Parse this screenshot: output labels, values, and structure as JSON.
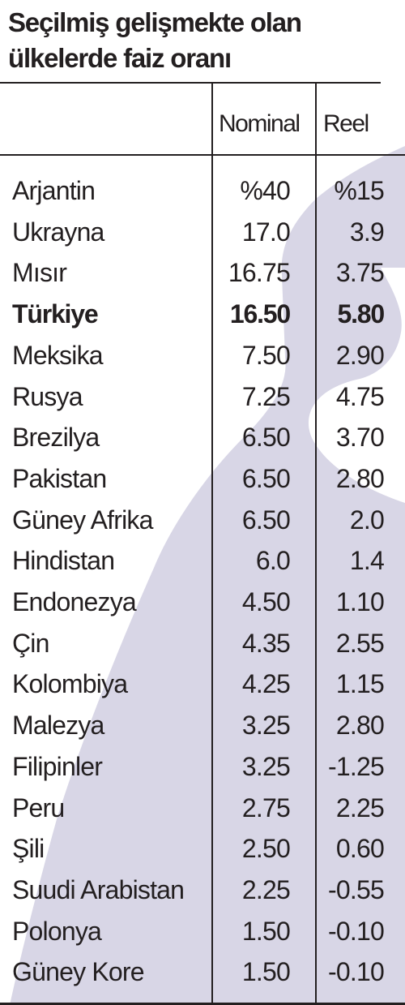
{
  "title": {
    "line1": "Seçilmiş gelişmekte olan",
    "line2": "ülkelerde faiz oranı"
  },
  "colors": {
    "text": "#231f20",
    "background_shape": "#d8d6e6"
  },
  "chart_data": {
    "type": "table",
    "title": "Seçilmiş gelişmekte olan ülkelerde faiz oranı",
    "columns": [
      "Nominal",
      "Reel"
    ],
    "rows": [
      {
        "country": "Arjantin",
        "nominal": "%40",
        "reel": "%15",
        "highlight": false
      },
      {
        "country": "Ukrayna",
        "nominal": "17.0",
        "reel": "3.9",
        "highlight": false
      },
      {
        "country": "Mısır",
        "nominal": "16.75",
        "reel": "3.75",
        "highlight": false
      },
      {
        "country": "Türkiye",
        "nominal": "16.50",
        "reel": "5.80",
        "highlight": true
      },
      {
        "country": "Meksika",
        "nominal": "7.50",
        "reel": "2.90",
        "highlight": false
      },
      {
        "country": "Rusya",
        "nominal": "7.25",
        "reel": "4.75",
        "highlight": false
      },
      {
        "country": "Brezilya",
        "nominal": "6.50",
        "reel": "3.70",
        "highlight": false
      },
      {
        "country": "Pakistan",
        "nominal": "6.50",
        "reel": "2.80",
        "highlight": false
      },
      {
        "country": "Güney Afrika",
        "nominal": "6.50",
        "reel": "2.0",
        "highlight": false
      },
      {
        "country": "Hindistan",
        "nominal": "6.0",
        "reel": "1.4",
        "highlight": false
      },
      {
        "country": "Endonezya",
        "nominal": "4.50",
        "reel": "1.10",
        "highlight": false
      },
      {
        "country": "Çin",
        "nominal": "4.35",
        "reel": "2.55",
        "highlight": false
      },
      {
        "country": "Kolombiya",
        "nominal": "4.25",
        "reel": "1.15",
        "highlight": false
      },
      {
        "country": "Malezya",
        "nominal": "3.25",
        "reel": "2.80",
        "highlight": false
      },
      {
        "country": "Filipinler",
        "nominal": "3.25",
        "reel": "-1.25",
        "highlight": false
      },
      {
        "country": "Peru",
        "nominal": "2.75",
        "reel": "2.25",
        "highlight": false
      },
      {
        "country": "Şili",
        "nominal": "2.50",
        "reel": "0.60",
        "highlight": false
      },
      {
        "country": "Suudi Arabistan",
        "nominal": "2.25",
        "reel": "-0.55",
        "highlight": false
      },
      {
        "country": "Polonya",
        "nominal": "1.50",
        "reel": "-0.10",
        "highlight": false
      },
      {
        "country": "Güney Kore",
        "nominal": "1.50",
        "reel": "-0.10",
        "highlight": false
      }
    ]
  }
}
